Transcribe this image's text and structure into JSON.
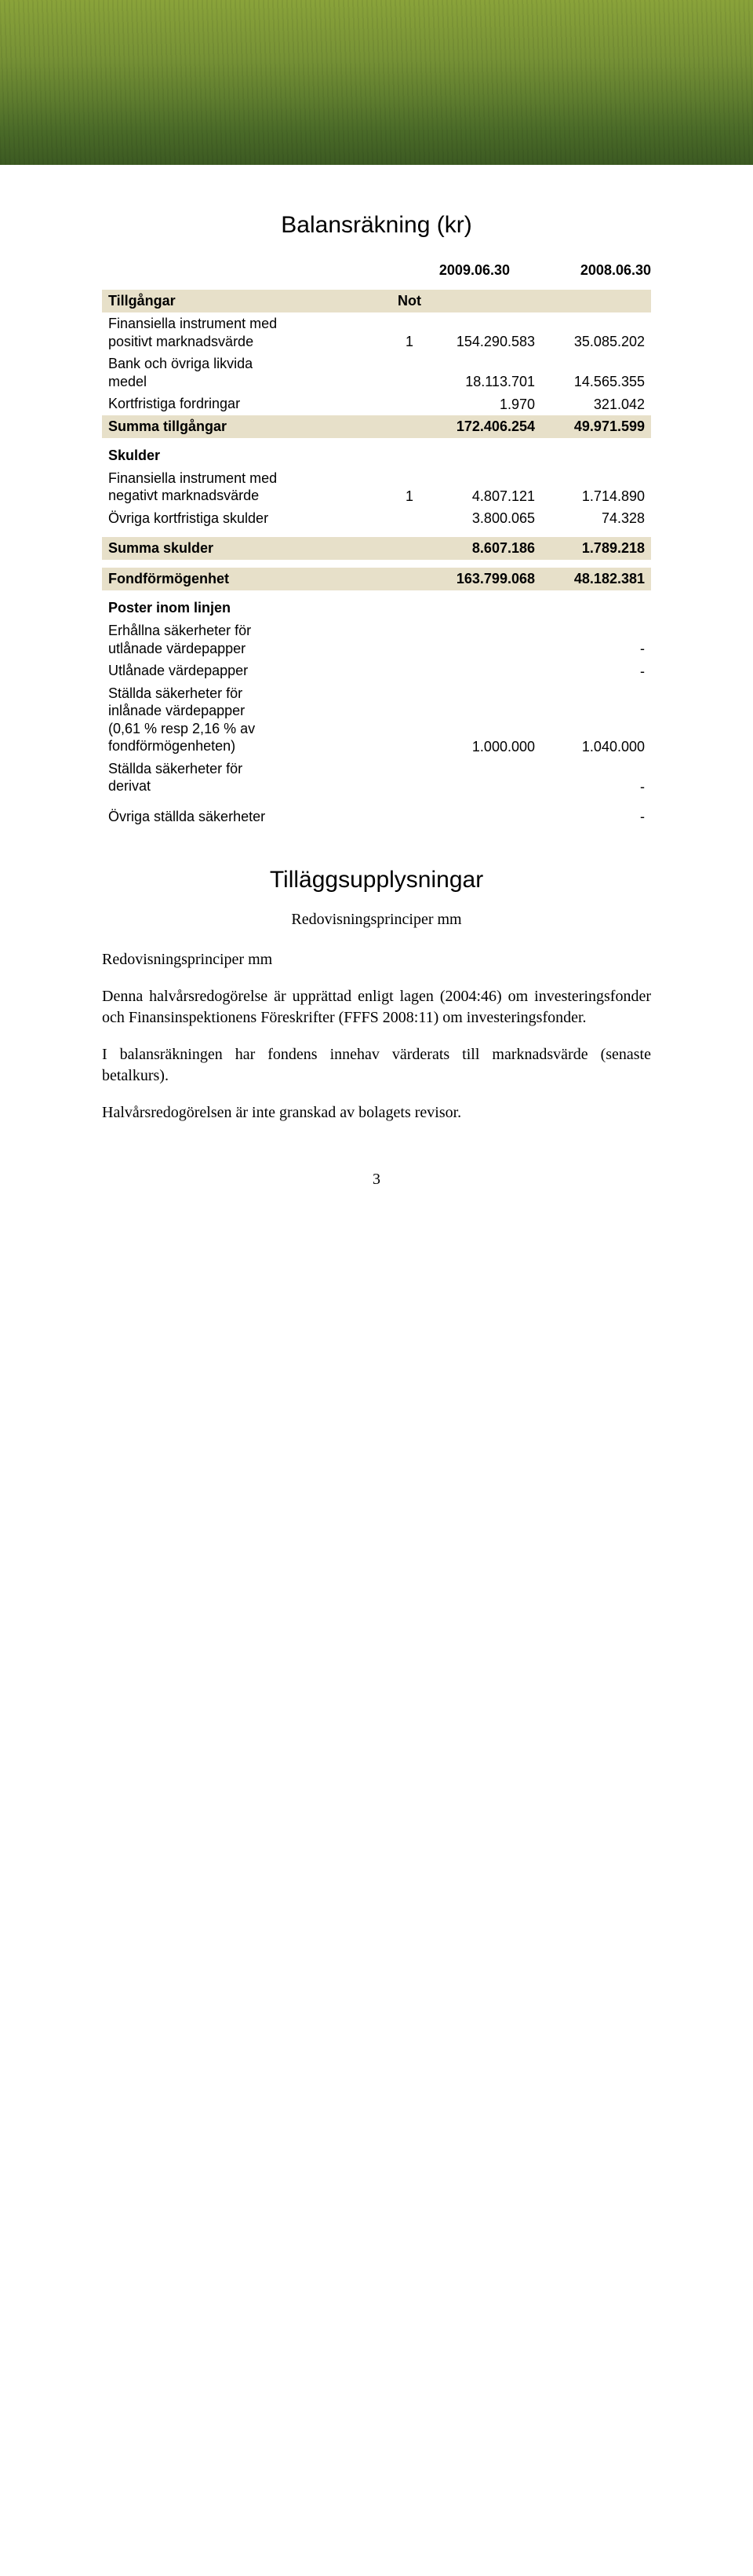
{
  "hero": {
    "alt": "green-field-banner"
  },
  "title": "Balansräkning (kr)",
  "columns": {
    "c1": "2009.06.30",
    "c2": "2008.06.30"
  },
  "assets": {
    "header": {
      "label": "Tillgångar",
      "note": "Not"
    },
    "rows": [
      {
        "label": "Finansiella instrument med\npositivt marknadsvärde",
        "note": "1",
        "v1": "154.290.583",
        "v2": "35.085.202"
      },
      {
        "label": "Bank och övriga likvida\nmedel",
        "v1": "18.113.701",
        "v2": "14.565.355"
      },
      {
        "label": "Kortfristiga fordringar",
        "v1": "1.970",
        "v2": "321.042"
      }
    ],
    "sum": {
      "label": "Summa tillgångar",
      "v1": "172.406.254",
      "v2": "49.971.599"
    }
  },
  "liab": {
    "header": "Skulder",
    "rows": [
      {
        "label": "Finansiella instrument med\nnegativt marknadsvärde",
        "note": "1",
        "v1": "4.807.121",
        "v2": "1.714.890"
      },
      {
        "label": "Övriga kortfristiga skulder",
        "v1": "3.800.065",
        "v2": "74.328"
      }
    ],
    "sum": {
      "label": "Summa skulder",
      "v1": "8.607.186",
      "v2": "1.789.218"
    }
  },
  "fund": {
    "label": "Fondförmögenhet",
    "v1": "163.799.068",
    "v2": "48.182.381"
  },
  "poster": {
    "header": "Poster inom linjen",
    "rows": [
      {
        "label": "Erhållna säkerheter för\nutlånade värdepapper",
        "v2": "-"
      },
      {
        "label": "Utlånade värdepapper",
        "v2": "-"
      },
      {
        "label": "Ställda säkerheter för\ninlånade värdepapper\n(0,61 % resp 2,16 % av\nfondförmögenheten)",
        "v1": "1.000.000",
        "v2": "1.040.000"
      },
      {
        "label": "Ställda säkerheter för\nderivat",
        "v2": "-"
      },
      {
        "label": "Övriga ställda säkerheter",
        "v2": "-"
      }
    ]
  },
  "supp": {
    "title": "Tilläggsupplysningar",
    "center": "Redovisningsprinciper mm",
    "left": "Redovisningsprinciper mm",
    "p1": "Denna halvårsredogörelse är upprättad enligt lagen (2004:46) om investeringsfonder och Finansinspektionens Föreskrifter (FFFS 2008:11) om investeringsfonder.",
    "p2": "I balansräkningen har fondens innehav värderats till marknadsvärde (senaste betalkurs).",
    "p3": "Halvårsredogörelsen är inte granskad av bolagets revisor."
  },
  "page_number": "3"
}
